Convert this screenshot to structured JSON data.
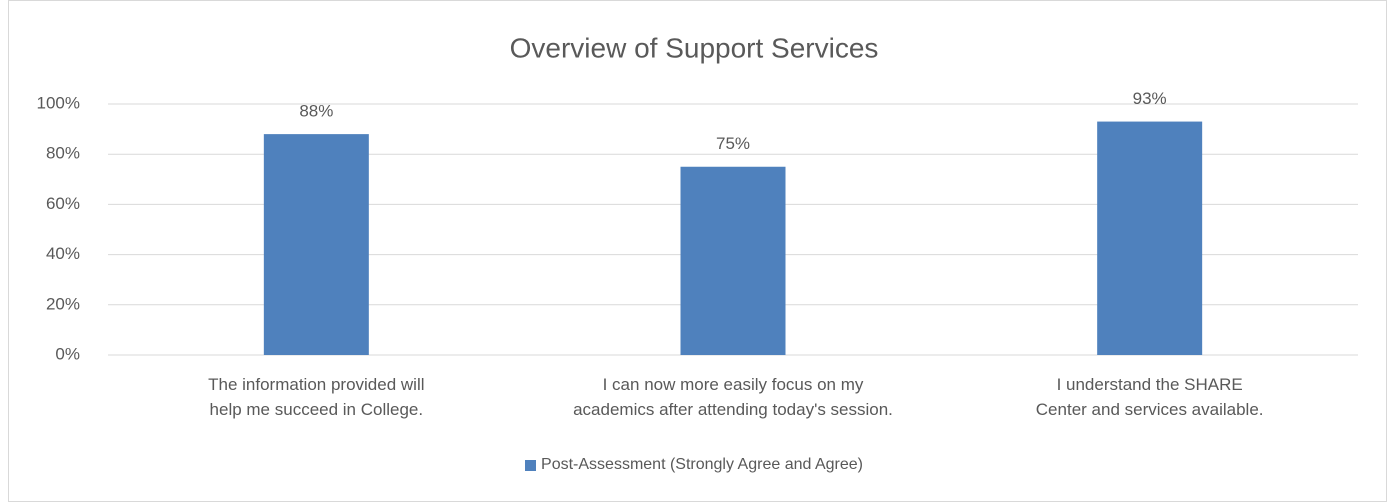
{
  "chart_data": {
    "type": "bar",
    "title": "Overview of Support Services",
    "categories": [
      "The information provided will help me succeed in College.",
      "I can now more easily focus on my academics after attending today's session.",
      "I understand the SHARE Center and services available."
    ],
    "series": [
      {
        "name": "Post-Assessment (Strongly Agree and Agree)",
        "color": "#4f81bd",
        "values": [
          88,
          75,
          93
        ],
        "value_labels": [
          "88%",
          "75%",
          "93%"
        ]
      }
    ],
    "ylim": [
      0,
      100
    ],
    "yticks": [
      {
        "value": 0,
        "label": "0%"
      },
      {
        "value": 20,
        "label": "20%"
      },
      {
        "value": 40,
        "label": "40%"
      },
      {
        "value": 60,
        "label": "60%"
      },
      {
        "value": 80,
        "label": "80%"
      },
      {
        "value": 100,
        "label": "100%"
      }
    ],
    "grid": true,
    "legend": "bottom"
  }
}
